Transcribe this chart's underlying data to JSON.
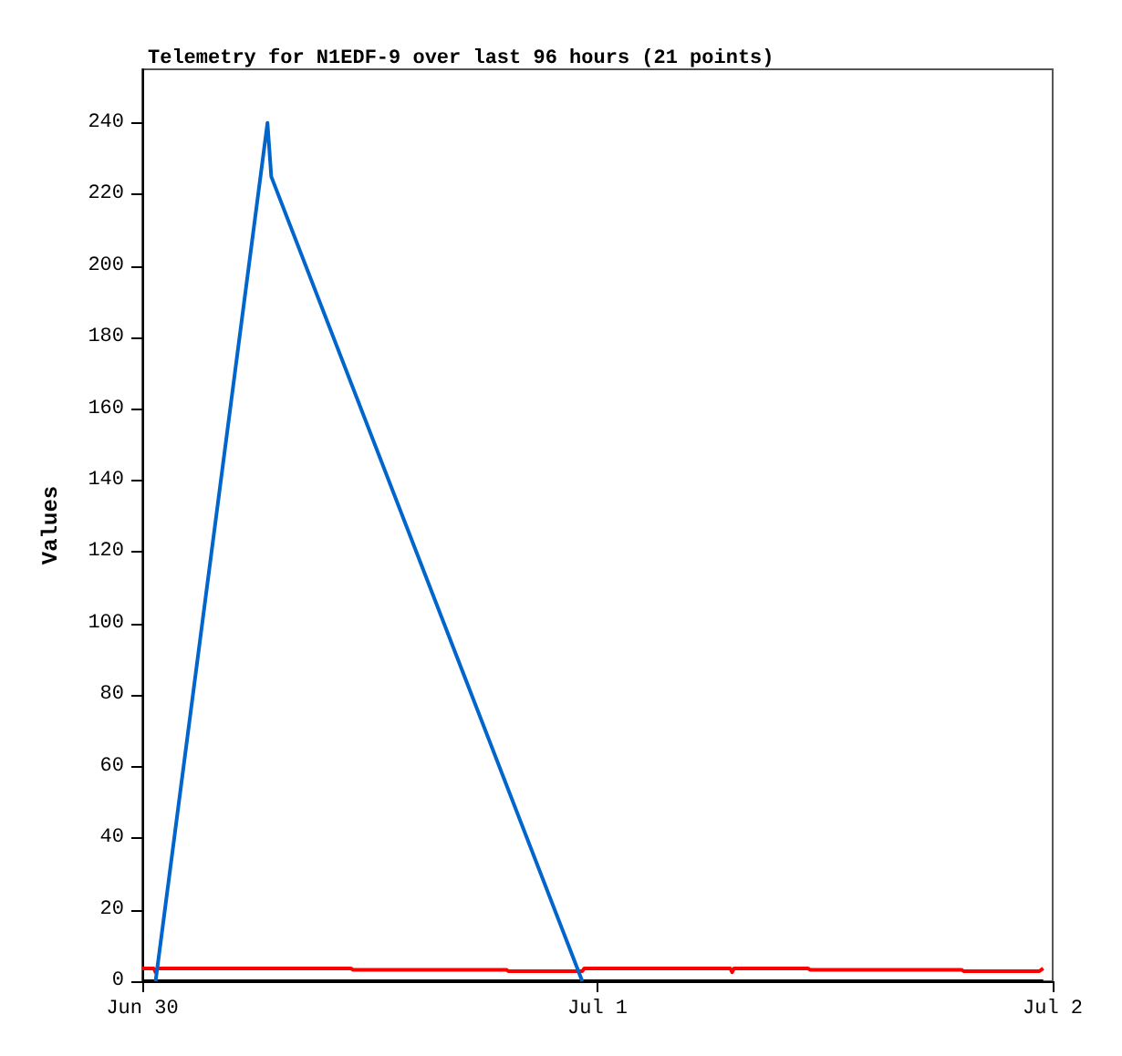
{
  "chart_data": {
    "type": "line",
    "title": "Telemetry for N1EDF-9 over last 96 hours (21 points)",
    "ylabel": "Values",
    "xlim": [
      "--06-30",
      "--07-02"
    ],
    "xticks": [
      {
        "value": "--06-30",
        "label": "Jun 30"
      },
      {
        "value": "--07-01",
        "label": "Jul 1"
      },
      {
        "value": "--07-02",
        "label": "Jul 2"
      }
    ],
    "ylim": [
      0,
      255
    ],
    "yticks": [
      0,
      20,
      40,
      60,
      80,
      100,
      120,
      140,
      160,
      180,
      200,
      220,
      240
    ],
    "grid": false,
    "marker": "none",
    "line_style": "solid",
    "series": [
      {
        "color": "#000000",
        "x": [
          "--06-30T00:00",
          "--07-01T23:30"
        ],
        "values": [
          0,
          0
        ]
      },
      {
        "color": "#ff0000",
        "x": [
          "--06-30T00:00",
          "--06-30T00:36",
          "--06-30T00:42",
          "--06-30T00:48",
          "--06-30T11:00",
          "--06-30T11:06",
          "--06-30T19:12",
          "--06-30T19:18",
          "--06-30T23:12",
          "--06-30T23:18",
          "--07-01T07:00",
          "--07-01T07:06",
          "--07-01T07:12",
          "--07-01T11:06",
          "--07-01T11:12",
          "--07-01T19:12",
          "--07-01T19:18",
          "--07-01T23:18",
          "--07-01T23:30"
        ],
        "values": [
          3.6,
          3.6,
          2.5,
          3.6,
          3.6,
          3.2,
          3.2,
          2.8,
          2.8,
          3.6,
          3.6,
          2.5,
          3.6,
          3.6,
          3.2,
          3.2,
          2.8,
          2.8,
          3.6
        ]
      },
      {
        "color": "#0066cc",
        "x": [
          "--06-30T00:42",
          "--06-30T06:36",
          "--06-30T06:48",
          "--06-30T23:12"
        ],
        "values": [
          0,
          240,
          225,
          0
        ]
      }
    ]
  }
}
